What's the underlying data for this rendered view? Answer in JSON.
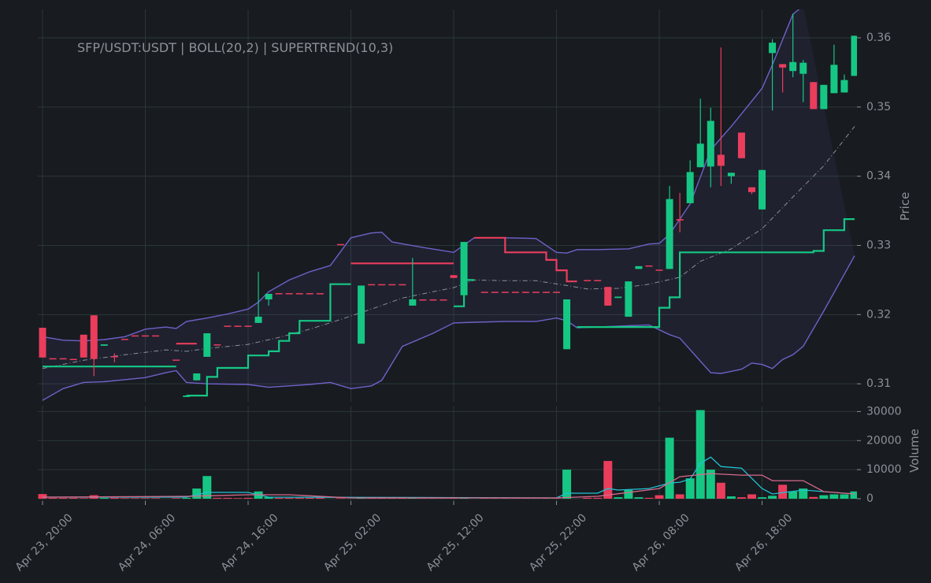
{
  "chart_data": [
    {
      "type": "candlestick",
      "title": "SFP/USDT:USDT | BOLL(20,2) | SUPERTREND(10,3)",
      "ylabel": "Price",
      "xlim": [
        -0.46,
        79.23
      ],
      "ylim": [
        0.3074,
        0.3641
      ],
      "yticks": [
        0.31,
        0.32,
        0.33,
        0.34,
        0.35,
        0.36
      ],
      "xticks": [
        0,
        10,
        20,
        30,
        40,
        50,
        60,
        70
      ],
      "grid": true,
      "up_color": "#16c784",
      "down_color": "#ea3d5c",
      "x": [
        0,
        1,
        2,
        3,
        4,
        5,
        6,
        7,
        8,
        9,
        10,
        11,
        13,
        14,
        15,
        16,
        17,
        18,
        19,
        20,
        21,
        22,
        23,
        24,
        25,
        26,
        27,
        29,
        31,
        32,
        33,
        34,
        35,
        36,
        37,
        38,
        39,
        40,
        41,
        43,
        44,
        45,
        46,
        47,
        48,
        49,
        50,
        51,
        53,
        54,
        55,
        56,
        57,
        58,
        59,
        60,
        61,
        62,
        63,
        64,
        65,
        66,
        67,
        68,
        69,
        70,
        71,
        72,
        73,
        74,
        75,
        76,
        77,
        78,
        79
      ],
      "open": [
        0.3181,
        0.3137,
        0.3137,
        0.3136,
        0.3171,
        0.3199,
        0.3155,
        0.314,
        0.3165,
        0.317,
        0.317,
        0.317,
        0.3135,
        0.3081,
        0.3105,
        0.3139,
        0.3157,
        0.3184,
        0.3184,
        0.3184,
        0.3188,
        0.3222,
        0.3231,
        0.3231,
        0.3231,
        0.3231,
        0.3231,
        0.3302,
        0.3158,
        0.3244,
        0.3244,
        0.3244,
        0.3244,
        0.3213,
        0.3222,
        0.3222,
        0.3222,
        0.3257,
        0.3228,
        0.3233,
        0.3233,
        0.3233,
        0.3233,
        0.3233,
        0.3233,
        0.3233,
        0.3233,
        0.315,
        0.325,
        0.325,
        0.324,
        0.3224,
        0.3197,
        0.3266,
        0.3271,
        0.3265,
        0.3266,
        0.3338,
        0.3361,
        0.3413,
        0.3414,
        0.3431,
        0.34,
        0.3463,
        0.3384,
        0.3352,
        0.3578,
        0.3562,
        0.3552,
        0.3548,
        0.3536,
        0.3497,
        0.352,
        0.3521,
        0.3545
      ],
      "high": [
        0.3181,
        0.3137,
        0.3137,
        0.3136,
        0.3171,
        0.3199,
        0.3157,
        0.3144,
        0.3165,
        0.317,
        0.317,
        0.317,
        0.3135,
        0.3083,
        0.3115,
        0.3173,
        0.3157,
        0.3184,
        0.3184,
        0.3184,
        0.3262,
        0.323,
        0.3231,
        0.3231,
        0.3231,
        0.3231,
        0.3231,
        0.3302,
        0.3242,
        0.3244,
        0.3244,
        0.3244,
        0.3244,
        0.3282,
        0.3222,
        0.3222,
        0.3222,
        0.3257,
        0.3305,
        0.3233,
        0.3233,
        0.3233,
        0.3233,
        0.3233,
        0.3233,
        0.3233,
        0.3233,
        0.3222,
        0.325,
        0.325,
        0.324,
        0.3226,
        0.3248,
        0.327,
        0.3271,
        0.3265,
        0.3386,
        0.3376,
        0.3423,
        0.3512,
        0.3499,
        0.3586,
        0.3405,
        0.3463,
        0.3384,
        0.3409,
        0.3598,
        0.3562,
        0.3635,
        0.3568,
        0.3536,
        0.3532,
        0.359,
        0.3547,
        0.3603
      ],
      "low": [
        0.3138,
        0.3137,
        0.3137,
        0.3136,
        0.3138,
        0.3111,
        0.3155,
        0.3131,
        0.3165,
        0.317,
        0.317,
        0.317,
        0.3135,
        0.3081,
        0.3105,
        0.3139,
        0.3157,
        0.3184,
        0.3184,
        0.3184,
        0.3188,
        0.3213,
        0.3231,
        0.3231,
        0.3231,
        0.3231,
        0.3231,
        0.3302,
        0.3158,
        0.3244,
        0.3244,
        0.3244,
        0.3244,
        0.3213,
        0.3222,
        0.3222,
        0.3222,
        0.3253,
        0.3228,
        0.3233,
        0.3233,
        0.3233,
        0.3233,
        0.3233,
        0.3233,
        0.3233,
        0.3233,
        0.315,
        0.325,
        0.325,
        0.3213,
        0.3224,
        0.3197,
        0.3266,
        0.3271,
        0.3265,
        0.3266,
        0.3319,
        0.3361,
        0.3413,
        0.3384,
        0.3386,
        0.3389,
        0.3426,
        0.3374,
        0.3352,
        0.3495,
        0.3521,
        0.3543,
        0.3507,
        0.3497,
        0.3497,
        0.352,
        0.3521,
        0.3545
      ],
      "close": [
        0.3138,
        0.3137,
        0.3137,
        0.3136,
        0.3138,
        0.3136,
        0.3157,
        0.314,
        0.3165,
        0.317,
        0.317,
        0.317,
        0.3135,
        0.3083,
        0.3115,
        0.3173,
        0.3157,
        0.3184,
        0.3184,
        0.3184,
        0.3197,
        0.323,
        0.3231,
        0.3231,
        0.3231,
        0.3231,
        0.3231,
        0.3302,
        0.3242,
        0.3244,
        0.3244,
        0.3244,
        0.3244,
        0.3222,
        0.3222,
        0.3222,
        0.3222,
        0.3253,
        0.3305,
        0.3233,
        0.3233,
        0.3233,
        0.3233,
        0.3233,
        0.3233,
        0.3233,
        0.3233,
        0.3222,
        0.325,
        0.325,
        0.3213,
        0.3226,
        0.3248,
        0.327,
        0.3271,
        0.3265,
        0.3367,
        0.3336,
        0.3406,
        0.3447,
        0.348,
        0.3415,
        0.3405,
        0.3426,
        0.3377,
        0.3409,
        0.3593,
        0.3557,
        0.3565,
        0.3564,
        0.3497,
        0.3532,
        0.3561,
        0.3539,
        0.3603
      ],
      "bollinger": {
        "fill": "rgba(95,90,190,0.10)",
        "upper": {
          "color": "#6e62c9",
          "x": [
            0,
            2,
            4,
            6,
            8,
            10,
            12,
            13,
            14,
            16,
            18,
            20,
            21,
            22,
            24,
            26,
            28,
            30,
            32,
            33,
            34,
            37,
            40,
            42,
            45,
            48,
            50,
            51,
            52,
            54,
            57,
            59,
            60,
            61,
            62,
            63,
            65,
            67,
            68,
            70,
            71,
            73,
            74
          ],
          "values": [
            0.3168,
            0.3163,
            0.3162,
            0.3164,
            0.3168,
            0.3179,
            0.3182,
            0.318,
            0.319,
            0.3195,
            0.3201,
            0.3208,
            0.3218,
            0.3233,
            0.325,
            0.3262,
            0.3271,
            0.3311,
            0.3318,
            0.3319,
            0.3305,
            0.3297,
            0.329,
            0.3311,
            0.3311,
            0.331,
            0.329,
            0.3289,
            0.3294,
            0.3294,
            0.3295,
            0.3302,
            0.3303,
            0.3316,
            0.3338,
            0.336,
            0.3438,
            0.3472,
            0.349,
            0.3527,
            0.3561,
            0.3634,
            0.3646
          ]
        },
        "middle": {
          "color": "#8c9099",
          "x": [
            0,
            4,
            8,
            12,
            14,
            16,
            20,
            23,
            26,
            29,
            32,
            35,
            38,
            40,
            42,
            45,
            48,
            51,
            53,
            56,
            59,
            62,
            64,
            67,
            70,
            73,
            76,
            79
          ],
          "values": [
            0.3122,
            0.3134,
            0.3142,
            0.3149,
            0.3147,
            0.3151,
            0.3157,
            0.3167,
            0.3179,
            0.3193,
            0.3208,
            0.3224,
            0.3233,
            0.3239,
            0.325,
            0.3249,
            0.3249,
            0.3242,
            0.3237,
            0.3238,
            0.3244,
            0.3254,
            0.3277,
            0.3295,
            0.3324,
            0.337,
            0.3415,
            0.3472
          ]
        },
        "lower": {
          "color": "#6e62c9",
          "x": [
            0,
            2,
            4,
            6,
            8,
            10,
            12,
            13,
            14,
            16,
            20,
            22,
            26,
            28,
            30,
            32,
            33,
            35,
            38,
            40,
            42,
            45,
            48,
            50,
            51,
            52,
            54,
            57,
            59,
            61,
            62,
            65,
            66,
            68,
            69,
            70,
            71,
            72,
            73,
            74,
            76,
            79
          ],
          "values": [
            0.3076,
            0.3093,
            0.3102,
            0.3103,
            0.3106,
            0.3109,
            0.3116,
            0.3119,
            0.3102,
            0.31,
            0.3099,
            0.3095,
            0.3099,
            0.3102,
            0.3093,
            0.3097,
            0.3105,
            0.3154,
            0.3173,
            0.3188,
            0.3189,
            0.319,
            0.319,
            0.3195,
            0.3191,
            0.3181,
            0.3182,
            0.3184,
            0.3185,
            0.3171,
            0.3166,
            0.3116,
            0.3115,
            0.3121,
            0.313,
            0.3128,
            0.3122,
            0.3135,
            0.3142,
            0.3154,
            0.3205,
            0.3285
          ]
        }
      },
      "supertrend": [
        {
          "color": "#16c784",
          "x": [
            0,
            13
          ],
          "values": [
            0.3125,
            0.3125
          ]
        },
        {
          "color": "#ea3d5c",
          "x": [
            13,
            15
          ],
          "values": [
            0.3158,
            0.3158
          ]
        },
        {
          "color": "#16c784",
          "x": [
            14,
            16,
            17,
            20,
            22,
            23,
            24,
            25,
            28,
            30
          ],
          "values": [
            0.3083,
            0.311,
            0.3123,
            0.3141,
            0.3147,
            0.3162,
            0.3173,
            0.3191,
            0.3244,
            0.3244
          ]
        },
        {
          "color": "#ea3d5c",
          "x": [
            30,
            40
          ],
          "values": [
            0.3274,
            0.3274
          ]
        },
        {
          "color": "#16c784",
          "x": [
            40,
            41,
            42
          ],
          "values": [
            0.3212,
            0.325,
            0.325
          ]
        },
        {
          "color": "#ea3d5c",
          "x": [
            42,
            45,
            49,
            50,
            51,
            52
          ],
          "values": [
            0.3311,
            0.329,
            0.3279,
            0.3264,
            0.3248,
            0.3248
          ]
        },
        {
          "color": "#16c784",
          "x": [
            52,
            60,
            61,
            62,
            75,
            76,
            78,
            79
          ],
          "values": [
            0.3182,
            0.321,
            0.3225,
            0.329,
            0.3292,
            0.3322,
            0.3338,
            0.3338
          ]
        }
      ]
    },
    {
      "type": "bar",
      "ylabel": "Volume",
      "xlim": [
        -0.46,
        79.23
      ],
      "ylim": [
        0,
        32000
      ],
      "yticks": [
        0,
        10000,
        20000,
        30000
      ],
      "xticks": [
        {
          "value": 0,
          "label": "Apr 23, 20:00"
        },
        {
          "value": 10,
          "label": "Apr 24, 06:00"
        },
        {
          "value": 20,
          "label": "Apr 24, 16:00"
        },
        {
          "value": 30,
          "label": "Apr 25, 02:00"
        },
        {
          "value": 40,
          "label": "Apr 25, 12:00"
        },
        {
          "value": 50,
          "label": "Apr 25, 22:00"
        },
        {
          "value": 60,
          "label": "Apr 26, 08:00"
        },
        {
          "value": 70,
          "label": "Apr 26, 18:00"
        }
      ],
      "grid": true,
      "values": [
        1600,
        300,
        300,
        300,
        200,
        1200,
        300,
        300,
        200,
        200,
        200,
        200,
        200,
        300,
        3500,
        7800,
        300,
        300,
        200,
        300,
        2500,
        600,
        300,
        300,
        300,
        300,
        300,
        200,
        300,
        200,
        200,
        200,
        200,
        200,
        100,
        100,
        100,
        200,
        300,
        100,
        100,
        100,
        100,
        100,
        100,
        100,
        100,
        10000,
        300,
        300,
        13000,
        500,
        3000,
        500,
        300,
        1200,
        21000,
        1500,
        7000,
        30500,
        10000,
        5500,
        800,
        500,
        1500,
        500,
        1000,
        4800,
        2500,
        3500,
        600,
        1200,
        1500,
        1500,
        2500
      ],
      "lines": [
        {
          "color": "#1fc3d3",
          "x": [
            0,
            14,
            16,
            20,
            22,
            50,
            51,
            54,
            55,
            56,
            59,
            61,
            62,
            63,
            64,
            65,
            66,
            68,
            70,
            71,
            74,
            79
          ],
          "values": [
            540,
            540,
            2160,
            2160,
            540,
            270,
            1890,
            1890,
            3510,
            2970,
            3510,
            5400,
            5670,
            6750,
            12150,
            14310,
            11070,
            10530,
            3510,
            1620,
            2970,
            1620
          ]
        },
        {
          "color": "#d86a8c",
          "x": [
            0,
            14,
            20,
            22,
            24,
            30,
            50,
            54,
            60,
            62,
            65,
            68,
            70,
            71,
            74,
            76,
            79
          ],
          "values": [
            540,
            810,
            1350,
            1350,
            1350,
            270,
            270,
            810,
            3510,
            7560,
            8640,
            8100,
            8100,
            6210,
            6210,
            2430,
            1620
          ]
        }
      ]
    }
  ]
}
